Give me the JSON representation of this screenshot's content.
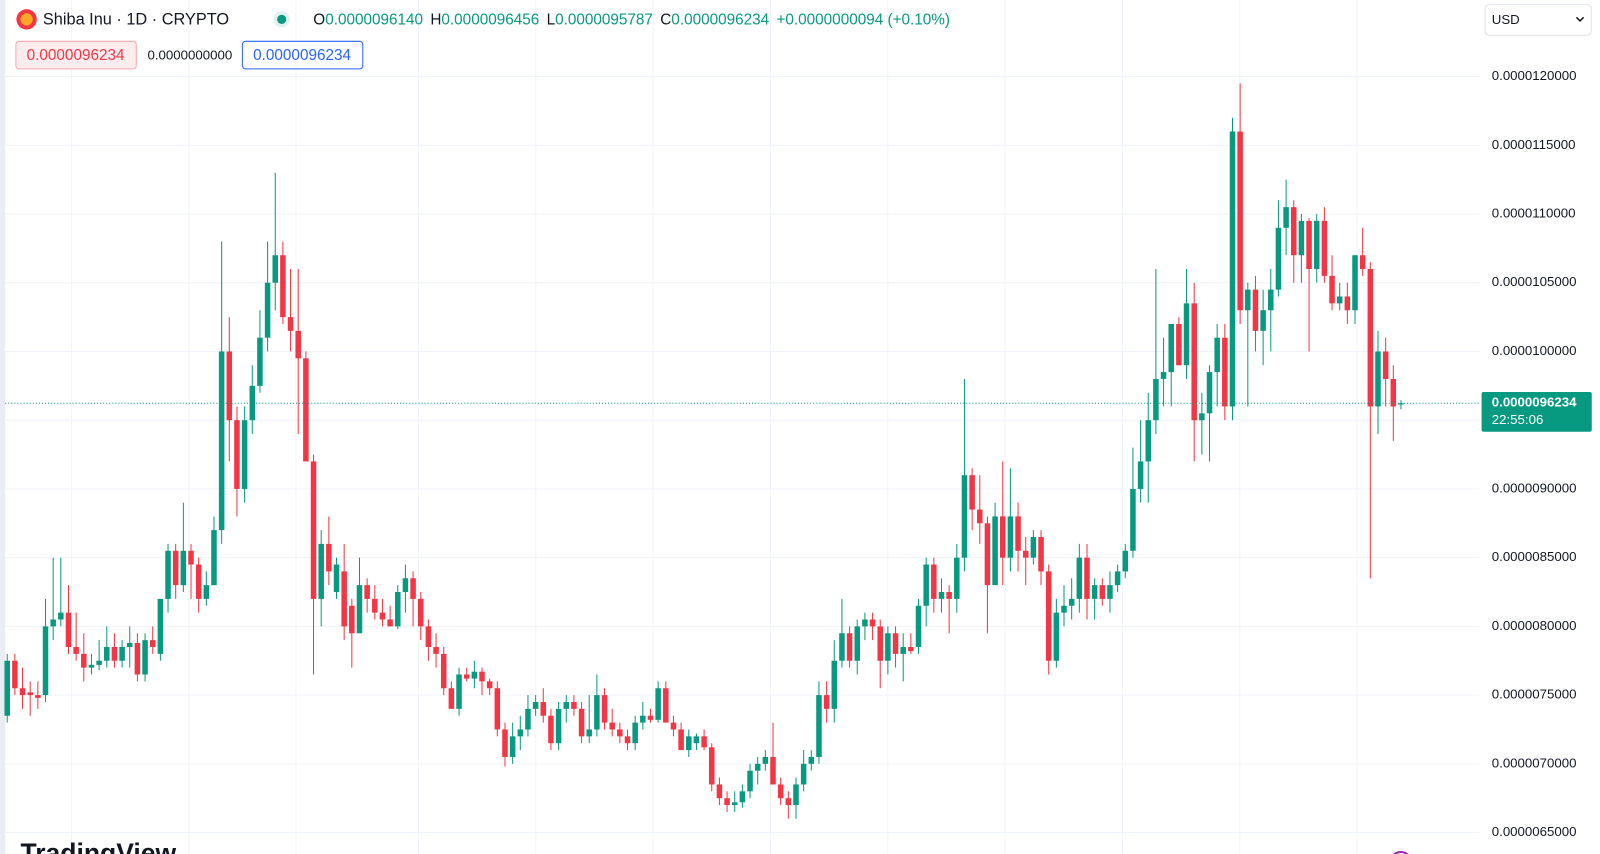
{
  "header": {
    "symbol": "Shiba Inu · 1D · CRYPTO",
    "ohlc": [
      {
        "key": "O",
        "value": "0.0000096140"
      },
      {
        "key": "H",
        "value": "0.0000096456"
      },
      {
        "key": "L",
        "value": "0.0000095787"
      },
      {
        "key": "C",
        "value": "0.0000096234"
      }
    ],
    "change": "+0.0000000094 (+0.10%)",
    "sell": "0.0000096234",
    "spread": "0.0000000000",
    "buy": "0.0000096234"
  },
  "currency": "USD",
  "logo": "TradingView",
  "chart_data": {
    "type": "candlestick",
    "up_color": "#089981",
    "down_color": "#f23645",
    "grid": true,
    "ylim": [
      6.344e-06,
      1.2557e-05
    ],
    "yticks": [
      {
        "value": 6.5e-06,
        "label": "0.0000065000"
      },
      {
        "value": 7e-06,
        "label": "0.0000070000"
      },
      {
        "value": 7.5e-06,
        "label": "0.0000075000"
      },
      {
        "value": 8e-06,
        "label": "0.0000080000"
      },
      {
        "value": 8.5e-06,
        "label": "0.0000085000"
      },
      {
        "value": 9e-06,
        "label": "0.0000090000"
      },
      {
        "value": 9.5e-06,
        "label": "0.0000095000"
      },
      {
        "value": 1e-05,
        "label": "0.0000100000"
      },
      {
        "value": 1.05e-05,
        "label": "0.0000105000"
      },
      {
        "value": 1.1e-05,
        "label": "0.0000110000"
      },
      {
        "value": 1.15e-05,
        "label": "0.0000115000"
      },
      {
        "value": 1.2e-05,
        "label": "0.0000120000"
      }
    ],
    "last_price_label": "0.0000096234",
    "countdown": "22:55:06",
    "open": [
      7.35e-06,
      7.75e-06,
      7.55e-06,
      7.52e-06,
      7.5e-06,
      7.5e-06,
      8e-06,
      8.05e-06,
      8.1e-06,
      7.85e-06,
      7.8e-06,
      7.7e-06,
      7.72e-06,
      7.75e-06,
      7.85e-06,
      7.75e-06,
      7.85e-06,
      7.88e-06,
      7.65e-06,
      7.9e-06,
      7.8e-06,
      8.2e-06,
      8.55e-06,
      8.3e-06,
      8.55e-06,
      8.45e-06,
      8.2e-06,
      8.3e-06,
      8.7e-06,
      1e-05,
      9.5e-06,
      9e-06,
      9.5e-06,
      9.75e-06,
      1.01e-05,
      1.05e-05,
      1.07e-05,
      1.025e-05,
      1.015e-05,
      9.95e-06,
      9.2e-06,
      8.2e-06,
      8.6e-06,
      8.25e-06,
      8.4e-06,
      8.15e-06,
      7.95e-06,
      8.3e-06,
      8.2e-06,
      8.1e-06,
      8.05e-06,
      8e-06,
      8.25e-06,
      8.35e-06,
      8.2e-06,
      8e-06,
      7.85e-06,
      7.8e-06,
      7.55e-06,
      7.4e-06,
      7.65e-06,
      7.62e-06,
      7.67e-06,
      7.6e-06,
      7.55e-06,
      7.25e-06,
      7.05e-06,
      7.2e-06,
      7.25e-06,
      7.4e-06,
      7.45e-06,
      7.35e-06,
      7.15e-06,
      7.4e-06,
      7.45e-06,
      7.4e-06,
      7.2e-06,
      7.25e-06,
      7.5e-06,
      7.3e-06,
      7.25e-06,
      7.2e-06,
      7.15e-06,
      7.3e-06,
      7.35e-06,
      7.32e-06,
      7.55e-06,
      7.3e-06,
      7.25e-06,
      7.1e-06,
      7.15e-06,
      7.2e-06,
      7.12e-06,
      6.85e-06,
      6.75e-06,
      6.7e-06,
      6.72e-06,
      6.8e-06,
      6.95e-06,
      7e-06,
      7.05e-06,
      6.85e-06,
      6.75e-06,
      6.7e-06,
      6.85e-06,
      7e-06,
      7.05e-06,
      7.5e-06,
      7.4e-06,
      7.75e-06,
      7.95e-06,
      7.75e-06,
      8e-06,
      8.05e-06,
      8e-06,
      7.75e-06,
      7.95e-06,
      7.8e-06,
      7.85e-06,
      7.85e-06,
      8.15e-06,
      8.45e-06,
      8.2e-06,
      8.25e-06,
      8.2e-06,
      8.5e-06,
      9.1e-06,
      8.85e-06,
      8.75e-06,
      8.3e-06,
      8.8e-06,
      8.5e-06,
      8.8e-06,
      8.55e-06,
      8.5e-06,
      8.65e-06,
      8.4e-06,
      7.75e-06,
      8.1e-06,
      8.15e-06,
      8.2e-06,
      8.5e-06,
      8.2e-06,
      8.3e-06,
      8.2e-06,
      8.3e-06,
      8.4e-06,
      8.55e-06,
      9e-06,
      9.2e-06,
      9.5e-06,
      9.8e-06,
      9.85e-06,
      1.02e-05,
      9.9e-06,
      1.035e-05,
      9.5e-06,
      9.55e-06,
      9.85e-06,
      1.01e-05,
      9.6e-06,
      1.16e-05,
      1.03e-05,
      1.045e-05,
      1.015e-05,
      1.03e-05,
      1.045e-05,
      1.09e-05,
      1.105e-05,
      1.07e-05,
      1.095e-05,
      1.06e-05,
      1.095e-05,
      1.055e-05,
      1.035e-05,
      1.04e-05,
      1.03e-05,
      1.07e-05,
      1.06e-05,
      9.6e-06,
      1e-05,
      9.8e-06,
      9.614e-06
    ],
    "high": [
      7.8e-06,
      7.8e-06,
      7.7e-06,
      7.6e-06,
      7.6e-06,
      8.2e-06,
      8.5e-06,
      8.5e-06,
      8.3e-06,
      8.1e-06,
      7.95e-06,
      7.8e-06,
      7.9e-06,
      8e-06,
      7.95e-06,
      7.9e-06,
      8e-06,
      7.95e-06,
      7.95e-06,
      8e-06,
      8.2e-06,
      8.6e-06,
      8.6e-06,
      8.9e-06,
      8.6e-06,
      8.5e-06,
      8.4e-06,
      8.8e-06,
      1.08e-05,
      1.025e-05,
      9.6e-06,
      9.6e-06,
      9.9e-06,
      1.03e-05,
      1.08e-05,
      1.13e-05,
      1.08e-05,
      1.06e-05,
      1.06e-05,
      1e-05,
      9.25e-06,
      8.7e-06,
      8.8e-06,
      8.5e-06,
      8.6e-06,
      8.2e-06,
      8.5e-06,
      8.35e-06,
      8.3e-06,
      8.2e-06,
      8.15e-06,
      8.3e-06,
      8.45e-06,
      8.4e-06,
      8.25e-06,
      8.05e-06,
      7.95e-06,
      7.85e-06,
      7.6e-06,
      7.7e-06,
      7.7e-06,
      7.75e-06,
      7.7e-06,
      7.62e-06,
      7.6e-06,
      7.3e-06,
      7.3e-06,
      7.35e-06,
      7.5e-06,
      7.5e-06,
      7.55e-06,
      7.4e-06,
      7.45e-06,
      7.5e-06,
      7.5e-06,
      7.45e-06,
      7.5e-06,
      7.65e-06,
      7.55e-06,
      7.4e-06,
      7.3e-06,
      7.25e-06,
      7.35e-06,
      7.45e-06,
      7.4e-06,
      7.6e-06,
      7.6e-06,
      7.35e-06,
      7.3e-06,
      7.25e-06,
      7.22e-06,
      7.25e-06,
      7.15e-06,
      6.9e-06,
      6.8e-06,
      6.8e-06,
      6.85e-06,
      7e-06,
      7.05e-06,
      7.1e-06,
      7.3e-06,
      6.9e-06,
      6.8e-06,
      6.9e-06,
      7.1e-06,
      7.1e-06,
      7.6e-06,
      7.6e-06,
      7.9e-06,
      8.2e-06,
      8e-06,
      8.05e-06,
      8.1e-06,
      8.1e-06,
      8.05e-06,
      8e-06,
      8e-06,
      7.95e-06,
      7.95e-06,
      8.2e-06,
      8.5e-06,
      8.5e-06,
      8.35e-06,
      8.3e-06,
      8.6e-06,
      9.8e-06,
      9.15e-06,
      9.1e-06,
      8.8e-06,
      8.9e-06,
      9.2e-06,
      9.15e-06,
      8.9e-06,
      8.65e-06,
      8.7e-06,
      8.7e-06,
      8.45e-06,
      8.2e-06,
      8.3e-06,
      8.35e-06,
      8.6e-06,
      8.6e-06,
      8.35e-06,
      8.35e-06,
      8.4e-06,
      8.45e-06,
      8.6e-06,
      9.3e-06,
      9.5e-06,
      9.7e-06,
      1.06e-05,
      1.01e-05,
      1.02e-05,
      1.025e-05,
      1.06e-05,
      1.05e-05,
      9.7e-06,
      9.9e-06,
      1.02e-05,
      1.02e-05,
      1.17e-05,
      1.195e-05,
      1.05e-05,
      1.055e-05,
      1.045e-05,
      1.06e-05,
      1.11e-05,
      1.125e-05,
      1.11e-05,
      1.1e-05,
      1.097e-05,
      1.1e-05,
      1.105e-05,
      1.07e-05,
      1.05e-05,
      1.05e-05,
      1.07e-05,
      1.09e-05,
      1.065e-05,
      1.015e-05,
      1.01e-05,
      9.9e-06,
      9.6456e-06
    ],
    "low": [
      7.3e-06,
      7.5e-06,
      7.4e-06,
      7.35e-06,
      7.4e-06,
      7.45e-06,
      7.9e-06,
      8e-06,
      7.8e-06,
      7.75e-06,
      7.6e-06,
      7.65e-06,
      7.68e-06,
      7.7e-06,
      7.7e-06,
      7.7e-06,
      7.7e-06,
      7.6e-06,
      7.6e-06,
      7.8e-06,
      7.75e-06,
      8.1e-06,
      8.2e-06,
      8.25e-06,
      8.2e-06,
      8.1e-06,
      8.15e-06,
      8.3e-06,
      8.6e-06,
      9.2e-06,
      8.8e-06,
      8.9e-06,
      9.4e-06,
      9.7e-06,
      1e-05,
      1.03e-05,
      1.02e-05,
      1e-05,
      9.4e-06,
      9.2e-06,
      7.65e-06,
      8e-06,
      8.3e-06,
      8.2e-06,
      7.9e-06,
      7.7e-06,
      7.95e-06,
      8.1e-06,
      8.05e-06,
      8e-06,
      8e-06,
      7.98e-06,
      8.1e-06,
      8e-06,
      7.9e-06,
      7.75e-06,
      7.7e-06,
      7.5e-06,
      7.4e-06,
      7.35e-06,
      7.6e-06,
      7.55e-06,
      7.5e-06,
      7.5e-06,
      7.2e-06,
      6.98e-06,
      7e-06,
      7.1e-06,
      7.2e-06,
      7.35e-06,
      7.3e-06,
      7.1e-06,
      7.1e-06,
      7.3e-06,
      7.35e-06,
      7.15e-06,
      7.15e-06,
      7.2e-06,
      7.25e-06,
      7.2e-06,
      7.15e-06,
      7.1e-06,
      7.1e-06,
      7.25e-06,
      7.3e-06,
      7.3e-06,
      7.3e-06,
      7.2e-06,
      7.1e-06,
      7.05e-06,
      7.1e-06,
      7.1e-06,
      6.8e-06,
      6.7e-06,
      6.65e-06,
      6.65e-06,
      6.68e-06,
      6.75e-06,
      6.85e-06,
      6.95e-06,
      6.85e-06,
      6.7e-06,
      6.6e-06,
      6.6e-06,
      6.8e-06,
      6.95e-06,
      7e-06,
      7.3e-06,
      7.3e-06,
      7.7e-06,
      7.7e-06,
      7.65e-06,
      7.9e-06,
      7.9e-06,
      7.55e-06,
      7.65e-06,
      7.7e-06,
      7.6e-06,
      7.8e-06,
      7.8e-06,
      8e-06,
      8.1e-06,
      8.1e-06,
      7.95e-06,
      8.1e-06,
      8.4e-06,
      8.7e-06,
      8.6e-06,
      7.95e-06,
      8.3e-06,
      8.3e-06,
      8.4e-06,
      8.4e-06,
      8.3e-06,
      8.45e-06,
      8.3e-06,
      7.65e-06,
      7.7e-06,
      8e-06,
      8.05e-06,
      8.1e-06,
      8.05e-06,
      8.05e-06,
      8.15e-06,
      8.1e-06,
      8.25e-06,
      8.35e-06,
      8.5e-06,
      8.9e-06,
      8.9e-06,
      9.4e-06,
      9.6e-06,
      9.6e-06,
      9.9e-06,
      9.8e-06,
      9.2e-06,
      9.25e-06,
      9.2e-06,
      9.6e-06,
      9.5e-06,
      9.5e-06,
      1.02e-05,
      9.6e-06,
      1e-05,
      9.9e-06,
      1e-05,
      1.04e-05,
      1.07e-05,
      1.05e-05,
      1.05e-05,
      1e-05,
      1.05e-05,
      1.05e-05,
      1.03e-05,
      1.03e-05,
      1.02e-05,
      1.02e-05,
      1.055e-05,
      8.35e-06,
      9.4e-06,
      9.6e-06,
      9.35e-06,
      9.5787e-06
    ],
    "close": [
      7.75e-06,
      7.55e-06,
      7.5e-06,
      7.5e-06,
      7.48e-06,
      8e-06,
      8.05e-06,
      8.1e-06,
      7.85e-06,
      7.8e-06,
      7.7e-06,
      7.72e-06,
      7.75e-06,
      7.85e-06,
      7.75e-06,
      7.85e-06,
      7.88e-06,
      7.65e-06,
      7.9e-06,
      7.85e-06,
      8.2e-06,
      8.55e-06,
      8.3e-06,
      8.55e-06,
      8.45e-06,
      8.2e-06,
      8.3e-06,
      8.7e-06,
      1e-05,
      9.5e-06,
      9e-06,
      9.5e-06,
      9.75e-06,
      1.01e-05,
      1.05e-05,
      1.07e-05,
      1.025e-05,
      1.015e-05,
      9.95e-06,
      9.2e-06,
      8.2e-06,
      8.6e-06,
      8.4e-06,
      8.45e-06,
      8e-06,
      7.95e-06,
      8.3e-06,
      8.2e-06,
      8.1e-06,
      8.05e-06,
      8e-06,
      8.25e-06,
      8.35e-06,
      8.2e-06,
      8e-06,
      7.85e-06,
      7.8e-06,
      7.55e-06,
      7.4e-06,
      7.65e-06,
      7.62e-06,
      7.67e-06,
      7.6e-06,
      7.55e-06,
      7.25e-06,
      7.05e-06,
      7.2e-06,
      7.25e-06,
      7.4e-06,
      7.45e-06,
      7.35e-06,
      7.15e-06,
      7.4e-06,
      7.45e-06,
      7.4e-06,
      7.2e-06,
      7.25e-06,
      7.5e-06,
      7.3e-06,
      7.25e-06,
      7.2e-06,
      7.15e-06,
      7.3e-06,
      7.35e-06,
      7.32e-06,
      7.55e-06,
      7.3e-06,
      7.25e-06,
      7.1e-06,
      7.2e-06,
      7.2e-06,
      7.12e-06,
      6.85e-06,
      6.75e-06,
      6.7e-06,
      6.72e-06,
      6.8e-06,
      6.95e-06,
      7e-06,
      7.05e-06,
      6.85e-06,
      6.75e-06,
      6.7e-06,
      6.85e-06,
      7e-06,
      7.05e-06,
      7.5e-06,
      7.4e-06,
      7.75e-06,
      7.95e-06,
      7.75e-06,
      8e-06,
      8.05e-06,
      8e-06,
      7.75e-06,
      7.95e-06,
      7.8e-06,
      7.85e-06,
      7.82e-06,
      8.15e-06,
      8.45e-06,
      8.2e-06,
      8.25e-06,
      8.2e-06,
      8.5e-06,
      9.1e-06,
      8.85e-06,
      8.75e-06,
      8.3e-06,
      8.8e-06,
      8.5e-06,
      8.8e-06,
      8.55e-06,
      8.5e-06,
      8.65e-06,
      8.4e-06,
      7.75e-06,
      8.1e-06,
      8.15e-06,
      8.2e-06,
      8.5e-06,
      8.2e-06,
      8.3e-06,
      8.2e-06,
      8.3e-06,
      8.4e-06,
      8.55e-06,
      9e-06,
      9.2e-06,
      9.5e-06,
      9.8e-06,
      9.85e-06,
      1.02e-05,
      9.9e-06,
      1.035e-05,
      9.5e-06,
      9.55e-06,
      9.85e-06,
      1.01e-05,
      9.6e-06,
      1.16e-05,
      1.03e-05,
      1.045e-05,
      1.015e-05,
      1.03e-05,
      1.045e-05,
      1.09e-05,
      1.105e-05,
      1.07e-05,
      1.095e-05,
      1.06e-05,
      1.095e-05,
      1.055e-05,
      1.035e-05,
      1.04e-05,
      1.03e-05,
      1.07e-05,
      1.06e-05,
      9.6e-06,
      1e-05,
      9.8e-06,
      9.6e-06,
      9.6234e-06
    ]
  }
}
